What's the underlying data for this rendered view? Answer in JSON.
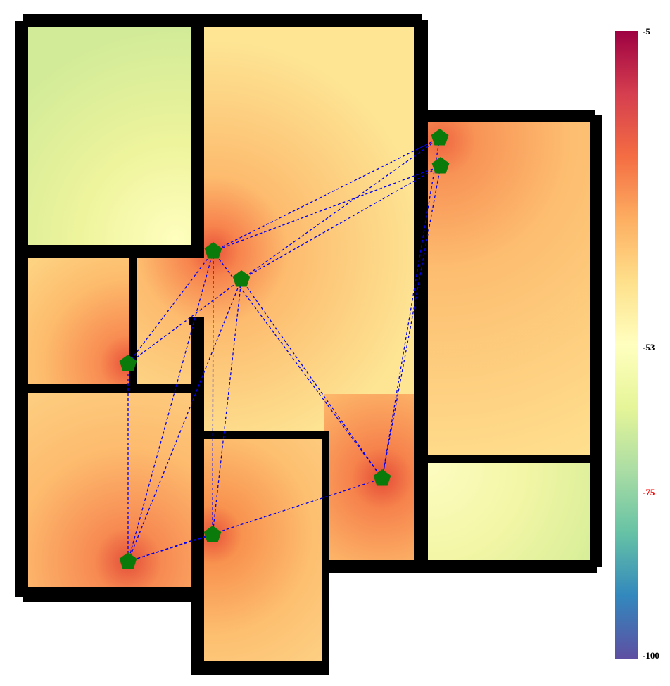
{
  "legend": {
    "ticks": [
      {
        "label": "-5",
        "value": -5,
        "color": "#000000"
      },
      {
        "label": "-53",
        "value": -53,
        "color": "#000000"
      },
      {
        "label": "-75",
        "value": -75,
        "color": "#ff0000"
      },
      {
        "label": "-100",
        "value": -100,
        "color": "#000000"
      }
    ],
    "colormap": [
      "#9e0142",
      "#d53e4f",
      "#f46d43",
      "#fdae61",
      "#fee08b",
      "#ffffbf",
      "#e6f598",
      "#abdda4",
      "#66c2a5",
      "#3288bd",
      "#5e4fa2"
    ]
  },
  "map": {
    "wall_color": "#000000",
    "node_color": "#0a7a0a",
    "link_color": "#0000ee"
  }
}
